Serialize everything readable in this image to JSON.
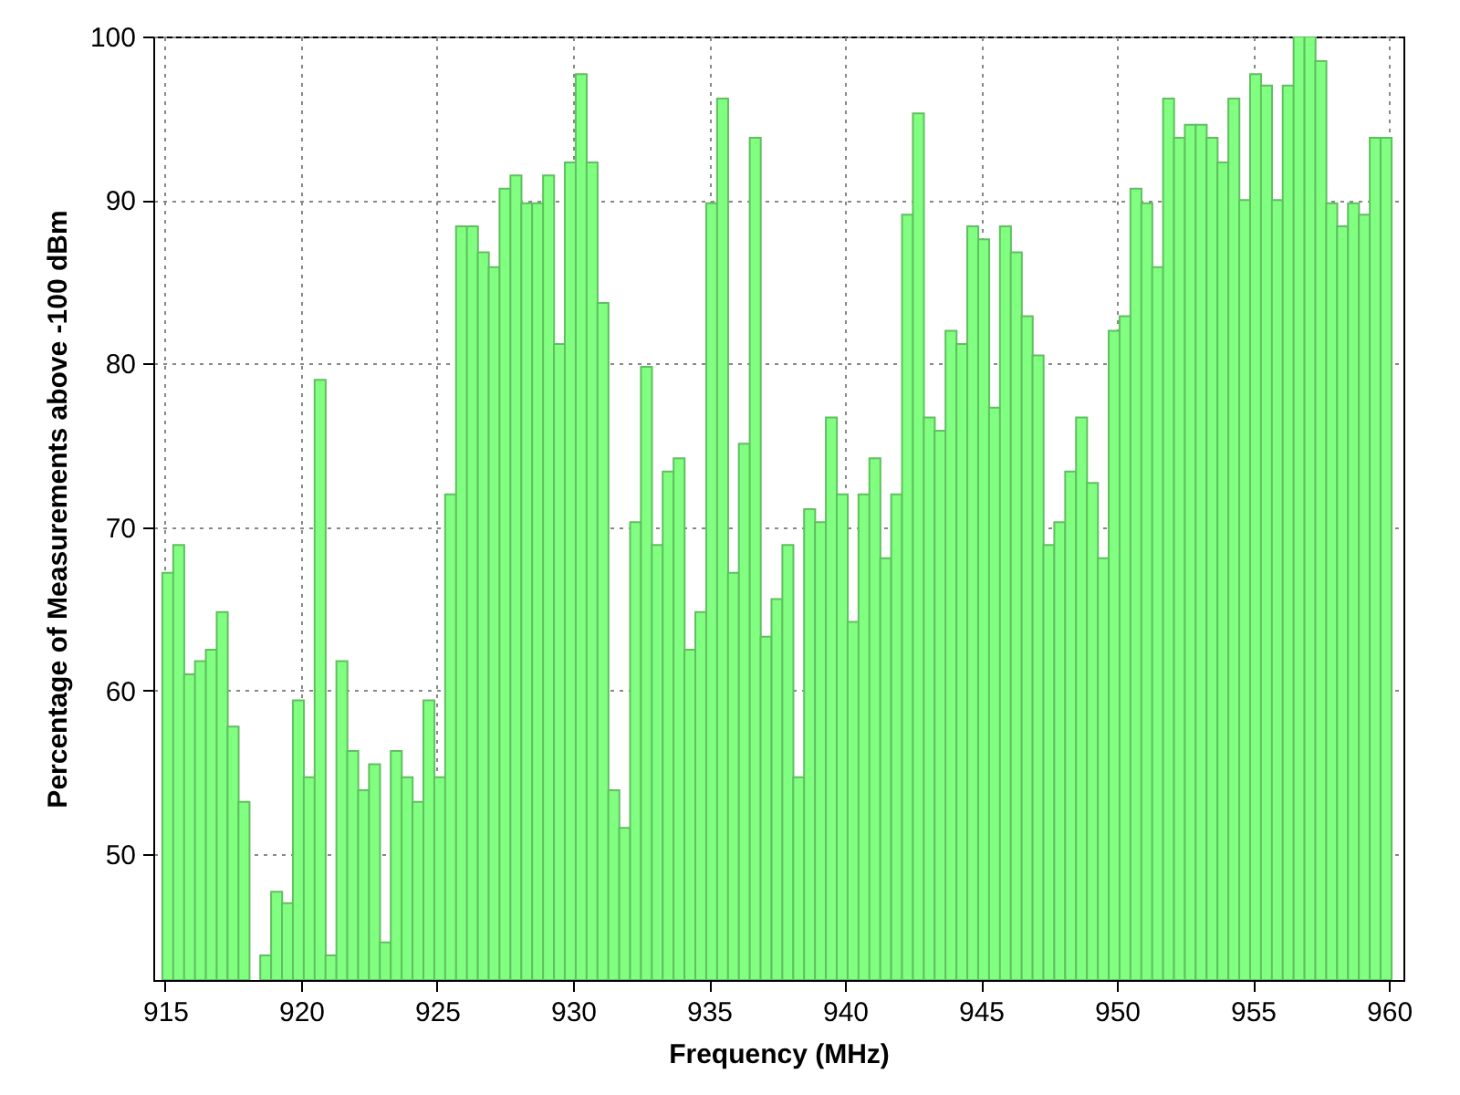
{
  "chart_data": {
    "type": "bar",
    "xlabel": "Frequency (MHz)",
    "ylabel": "Percentage of Measurements above -100 dBm",
    "x": [
      915.1,
      915.5,
      915.9,
      916.3,
      916.7,
      917.1,
      917.5,
      917.9,
      918.3,
      918.7,
      919.1,
      919.5,
      919.9,
      920.3,
      920.7,
      921.1,
      921.5,
      921.9,
      922.3,
      922.7,
      923.1,
      923.5,
      923.9,
      924.3,
      924.7,
      925.1,
      925.5,
      925.9,
      926.3,
      926.7,
      927.1,
      927.5,
      927.9,
      928.3,
      928.7,
      929.1,
      929.5,
      929.9,
      930.3,
      930.7,
      931.1,
      931.5,
      931.9,
      932.3,
      932.7,
      933.1,
      933.5,
      933.9,
      934.3,
      934.7,
      935.1,
      935.5,
      935.9,
      936.3,
      936.7,
      937.1,
      937.5,
      937.9,
      938.3,
      938.7,
      939.1,
      939.5,
      939.9,
      940.3,
      940.7,
      941.1,
      941.5,
      941.9,
      942.3,
      942.7,
      943.1,
      943.5,
      943.9,
      944.3,
      944.7,
      945.1,
      945.5,
      945.9,
      946.3,
      946.7,
      947.1,
      947.5,
      947.9,
      948.3,
      948.7,
      949.1,
      949.5,
      949.9,
      950.3,
      950.7,
      951.1,
      951.5,
      951.9,
      952.3,
      952.7,
      953.1,
      953.5,
      953.9,
      954.3,
      954.7,
      955.1,
      955.5,
      955.9,
      956.3,
      956.7,
      957.1,
      957.5,
      957.9,
      958.3,
      958.7,
      959.1,
      959.5,
      959.9
    ],
    "series": [
      {
        "color": "#80ff80",
        "values": [
          67.2,
          68.9,
          61.0,
          61.8,
          62.5,
          64.8,
          57.8,
          53.2,
          null,
          43.8,
          47.7,
          47.0,
          59.4,
          54.7,
          79.0,
          43.8,
          61.8,
          56.3,
          53.9,
          55.5,
          44.6,
          56.3,
          54.7,
          53.2,
          59.4,
          54.7,
          72.0,
          88.4,
          88.4,
          86.8,
          85.9,
          90.7,
          91.5,
          89.8,
          89.8,
          91.5,
          81.2,
          92.3,
          97.7,
          92.3,
          83.7,
          53.9,
          51.6,
          70.3,
          79.8,
          68.9,
          73.4,
          74.2,
          62.5,
          64.8,
          89.8,
          96.2,
          67.2,
          75.1,
          93.8,
          63.3,
          65.6,
          68.9,
          54.7,
          71.1,
          70.3,
          76.7,
          72.0,
          64.2,
          72.0,
          74.2,
          68.1,
          72.0,
          89.1,
          95.3,
          76.7,
          75.9,
          82.0,
          81.2,
          88.4,
          87.6,
          77.3,
          88.4,
          86.8,
          82.9,
          80.5,
          68.9,
          70.3,
          73.4,
          76.7,
          72.7,
          68.1,
          82.0,
          82.9,
          90.7,
          89.8,
          85.9,
          96.2,
          93.8,
          94.6,
          94.6,
          93.8,
          92.3,
          96.2,
          90.0,
          97.7,
          97.0,
          90.0,
          97.0,
          100,
          100,
          98.5,
          89.8,
          88.4,
          89.8,
          89.1,
          93.8,
          93.8
        ]
      }
    ],
    "xlim": [
      914.9,
      960.2
    ],
    "xticks": [
      915,
      920,
      925,
      930,
      935,
      940,
      945,
      950,
      955,
      960
    ],
    "ylim": [
      42.3,
      100
    ],
    "yticks": [
      50,
      60,
      70,
      80,
      90,
      100
    ],
    "grid": true
  }
}
